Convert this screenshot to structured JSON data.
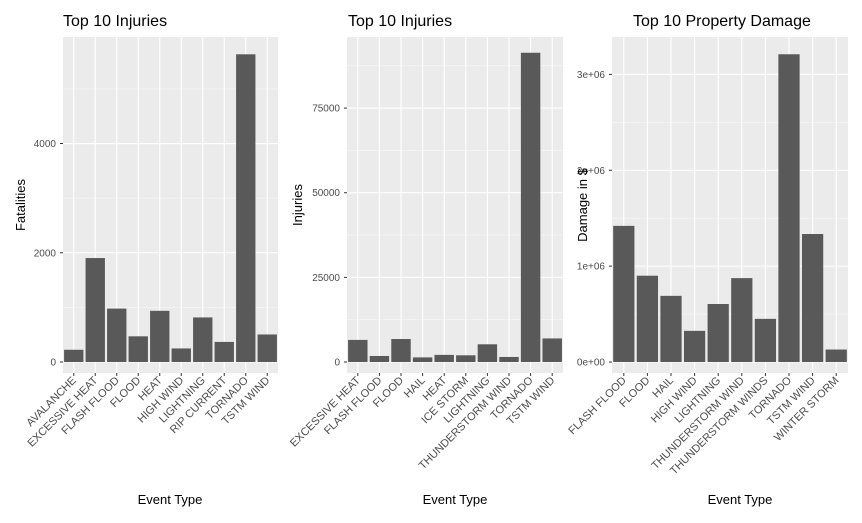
{
  "colors": {
    "panel_bg": "#ebebeb",
    "grid_major": "#ffffff",
    "bar": "#595959",
    "text": "#000000",
    "tick_text": "#4d4d4d"
  },
  "chart_data": [
    {
      "type": "bar",
      "title": "Top 10 Injuries",
      "xlabel": "Event Type",
      "ylabel": "Fatalities",
      "ylim": [
        0,
        5950
      ],
      "yticks": [
        0,
        2000,
        4000
      ],
      "ytick_labels": [
        "0",
        "2000",
        "4000"
      ],
      "categories": [
        "AVALANCHE",
        "EXCESSIVE HEAT",
        "FLASH FLOOD",
        "FLOOD",
        "HEAT",
        "HIGH WIND",
        "LIGHTNING",
        "RIP CURRENT",
        "TORNADO",
        "TSTM WIND"
      ],
      "values": [
        224,
        1903,
        978,
        470,
        937,
        248,
        816,
        368,
        5633,
        504
      ],
      "grid": true,
      "legend": "none"
    },
    {
      "type": "bar",
      "title": "Top 10 Injuries",
      "xlabel": "Event Type",
      "ylabel": "Injuries",
      "ylim": [
        0,
        96000
      ],
      "yticks": [
        0,
        25000,
        50000,
        75000
      ],
      "ytick_labels": [
        "0",
        "25000",
        "50000",
        "75000"
      ],
      "categories": [
        "EXCESSIVE HEAT",
        "FLASH FLOOD",
        "FLOOD",
        "HAIL",
        "HEAT",
        "ICE STORM",
        "LIGHTNING",
        "THUNDERSTORM WIND",
        "TORNADO",
        "TSTM WIND"
      ],
      "values": [
        6525,
        1777,
        6789,
        1361,
        2100,
        1975,
        5230,
        1488,
        91346,
        6957
      ],
      "grid": true,
      "legend": "none"
    },
    {
      "type": "bar",
      "title": "Top 10 Property Damage",
      "xlabel": "Event Type",
      "ylabel": "Damage in $",
      "ylim": [
        0,
        3390000
      ],
      "yticks": [
        0,
        1000000,
        2000000,
        3000000
      ],
      "ytick_labels": [
        "0e+00",
        "1e+06",
        "2e+06",
        "3e+06"
      ],
      "categories": [
        "FLASH FLOOD",
        "FLOOD",
        "HAIL",
        "HIGH WIND",
        "LIGHTNING",
        "THUNDERSTORM WIND",
        "THUNDERSTORM WINDS",
        "TORNADO",
        "TSTM WIND",
        "WINTER STORM"
      ],
      "values": [
        1420000,
        900000,
        690000,
        325000,
        605000,
        875000,
        450000,
        3210000,
        1335000,
        130000
      ],
      "grid": true,
      "legend": "none"
    }
  ]
}
